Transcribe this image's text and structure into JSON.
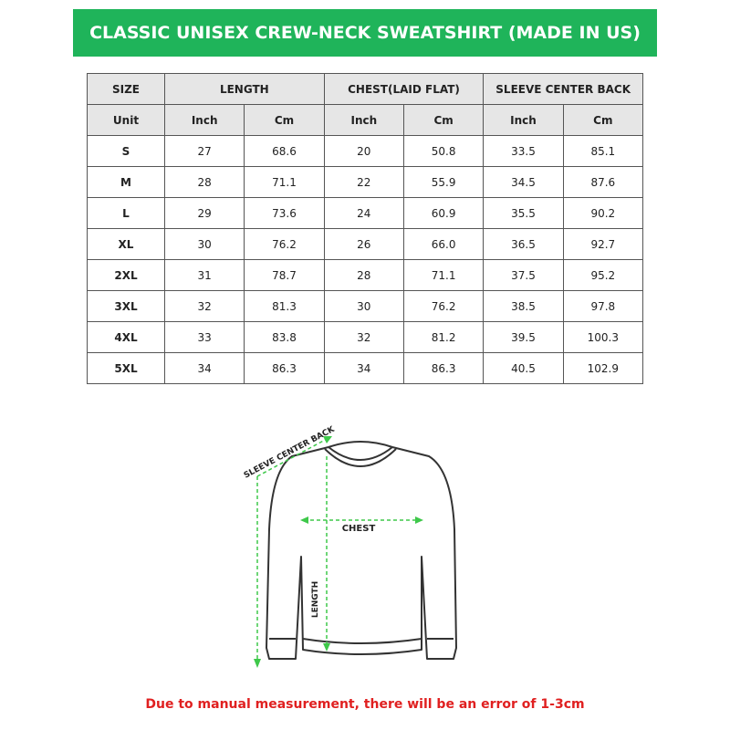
{
  "header": {
    "title": "CLASSIC UNISEX CREW-NECK SWEATSHIRT (MADE IN US)"
  },
  "table": {
    "columns": [
      "SIZE",
      "LENGTH",
      "CHEST(LAID FLAT)",
      "SLEEVE CENTER BACK"
    ],
    "units": [
      "Unit",
      "Inch",
      "Cm",
      "Inch",
      "Cm",
      "Inch",
      "Cm"
    ],
    "rows": [
      [
        "S",
        "27",
        "68.6",
        "20",
        "50.8",
        "33.5",
        "85.1"
      ],
      [
        "M",
        "28",
        "71.1",
        "22",
        "55.9",
        "34.5",
        "87.6"
      ],
      [
        "L",
        "29",
        "73.6",
        "24",
        "60.9",
        "35.5",
        "90.2"
      ],
      [
        "XL",
        "30",
        "76.2",
        "26",
        "66.0",
        "36.5",
        "92.7"
      ],
      [
        "2XL",
        "31",
        "78.7",
        "28",
        "71.1",
        "37.5",
        "95.2"
      ],
      [
        "3XL",
        "32",
        "81.3",
        "30",
        "76.2",
        "38.5",
        "97.8"
      ],
      [
        "4XL",
        "33",
        "83.8",
        "32",
        "81.2",
        "39.5",
        "100.3"
      ],
      [
        "5XL",
        "34",
        "86.3",
        "34",
        "86.3",
        "40.5",
        "102.9"
      ]
    ]
  },
  "diagram": {
    "sleeve_label": "SLEEVE CENTER BACK",
    "chest_label": "CHEST",
    "length_label": "LENGTH"
  },
  "footer": {
    "note": "Due to manual measurement, there will be an error of 1-3cm"
  }
}
